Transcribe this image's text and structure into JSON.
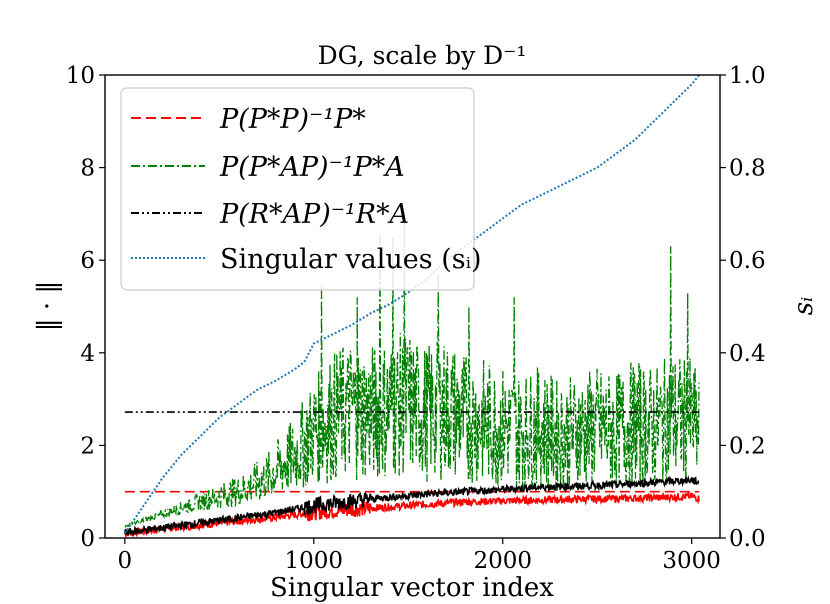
{
  "chart_data": {
    "type": "line",
    "title": "DG, scale by D⁻¹",
    "xlabel": "Singular vector index",
    "ylabel": "‖ · ‖",
    "y2label": "sᵢ",
    "xlim": [
      -105,
      3150
    ],
    "ylim": [
      0,
      10
    ],
    "y2lim": [
      0,
      1
    ],
    "xticks": [
      "0",
      "1000",
      "2000",
      "3000"
    ],
    "yticks": [
      "0",
      "2",
      "4",
      "6",
      "8",
      "10"
    ],
    "y2ticks": [
      "0.0",
      "0.2",
      "0.4",
      "0.6",
      "0.8",
      "1.0"
    ],
    "grid": false,
    "legend_position": "top-left",
    "series": [
      {
        "name": "P(P*P)⁻¹P*",
        "color": "#ff0000",
        "style": "dashed",
        "axis": "left",
        "x": [
          0,
          3040
        ],
        "values": [
          1.0,
          1.0
        ]
      },
      {
        "name": "P(P*P)⁻¹P*",
        "color": "#ff0000",
        "style": "solid",
        "axis": "left",
        "x": [
          0,
          200,
          500,
          800,
          1000,
          1200,
          1400,
          1600,
          1800,
          2000,
          2200,
          2400,
          2600,
          2800,
          3000,
          3040
        ],
        "values": [
          0.1,
          0.2,
          0.32,
          0.45,
          0.55,
          0.62,
          0.67,
          0.73,
          0.78,
          0.8,
          0.82,
          0.84,
          0.85,
          0.87,
          0.9,
          0.85
        ]
      },
      {
        "name": "P(P*AP)⁻¹P*A",
        "color": "#008000",
        "style": "dash-dot",
        "axis": "left",
        "x": [
          0,
          150,
          300,
          450,
          600,
          750,
          900,
          1000,
          1100,
          1200,
          1300,
          1400,
          1500,
          1600,
          1700,
          1800,
          1900,
          2000,
          2100,
          2200,
          2300,
          2400,
          2500,
          2600,
          2700,
          2800,
          2900,
          3000,
          3040
        ],
        "values": [
          0.25,
          0.45,
          0.65,
          0.85,
          1.0,
          1.3,
          1.8,
          2.3,
          2.6,
          2.8,
          2.7,
          2.8,
          2.9,
          2.7,
          2.8,
          2.6,
          2.5,
          2.4,
          2.3,
          2.4,
          2.2,
          2.3,
          2.4,
          2.3,
          2.5,
          2.4,
          2.6,
          2.5,
          2.3
        ],
        "spikes": [
          {
            "x": 1040,
            "value": 5.5
          },
          {
            "x": 1230,
            "value": 5.2
          },
          {
            "x": 1350,
            "value": 6.6
          },
          {
            "x": 1420,
            "value": 6.5
          },
          {
            "x": 1480,
            "value": 6.8
          },
          {
            "x": 1660,
            "value": 5.7
          },
          {
            "x": 1820,
            "value": 5.0
          },
          {
            "x": 2060,
            "value": 5.2
          },
          {
            "x": 2890,
            "value": 6.3
          },
          {
            "x": 2980,
            "value": 5.3
          }
        ]
      },
      {
        "name": "P(R*AP)⁻¹R*A",
        "color": "#000000",
        "style": "dash-dot-dot",
        "axis": "left",
        "x": [
          0,
          3040
        ],
        "values": [
          2.72,
          2.72
        ]
      },
      {
        "name": "P(R*AP)⁻¹R*A",
        "color": "#000000",
        "style": "solid",
        "axis": "left",
        "x": [
          0,
          200,
          500,
          800,
          1000,
          1200,
          1400,
          1600,
          1800,
          2000,
          2200,
          2400,
          2600,
          2800,
          3000,
          3040
        ],
        "values": [
          0.12,
          0.22,
          0.38,
          0.55,
          0.7,
          0.8,
          0.88,
          0.95,
          1.0,
          1.05,
          1.1,
          1.12,
          1.15,
          1.2,
          1.25,
          1.2
        ]
      },
      {
        "name": "Singular values (sᵢ)",
        "color": "#1f77b4",
        "style": "dotted",
        "axis": "right",
        "x": [
          0,
          100,
          200,
          300,
          400,
          500,
          600,
          700,
          800,
          900,
          950,
          1000,
          1050,
          1100,
          1200,
          1300,
          1400,
          1500,
          1600,
          1700,
          1800,
          1900,
          2000,
          2100,
          2200,
          2300,
          2400,
          2500,
          2600,
          2700,
          2800,
          2900,
          2950,
          3000,
          3040
        ],
        "values": [
          0.01,
          0.07,
          0.13,
          0.18,
          0.22,
          0.26,
          0.29,
          0.32,
          0.34,
          0.365,
          0.38,
          0.42,
          0.43,
          0.44,
          0.46,
          0.485,
          0.505,
          0.53,
          0.56,
          0.6,
          0.63,
          0.66,
          0.69,
          0.72,
          0.74,
          0.76,
          0.78,
          0.8,
          0.83,
          0.86,
          0.9,
          0.94,
          0.96,
          0.98,
          1.0
        ]
      }
    ],
    "legend": [
      {
        "label": "P(P*P)⁻¹P*",
        "color": "#ff0000",
        "style": "dashed"
      },
      {
        "label": "P(P*AP)⁻¹P*A",
        "color": "#008000",
        "style": "dash-dot"
      },
      {
        "label": "P(R*AP)⁻¹R*A",
        "color": "#000000",
        "style": "dash-dot-dot"
      },
      {
        "label": "Singular values (sᵢ)",
        "color": "#1f77b4",
        "style": "dotted"
      }
    ]
  }
}
